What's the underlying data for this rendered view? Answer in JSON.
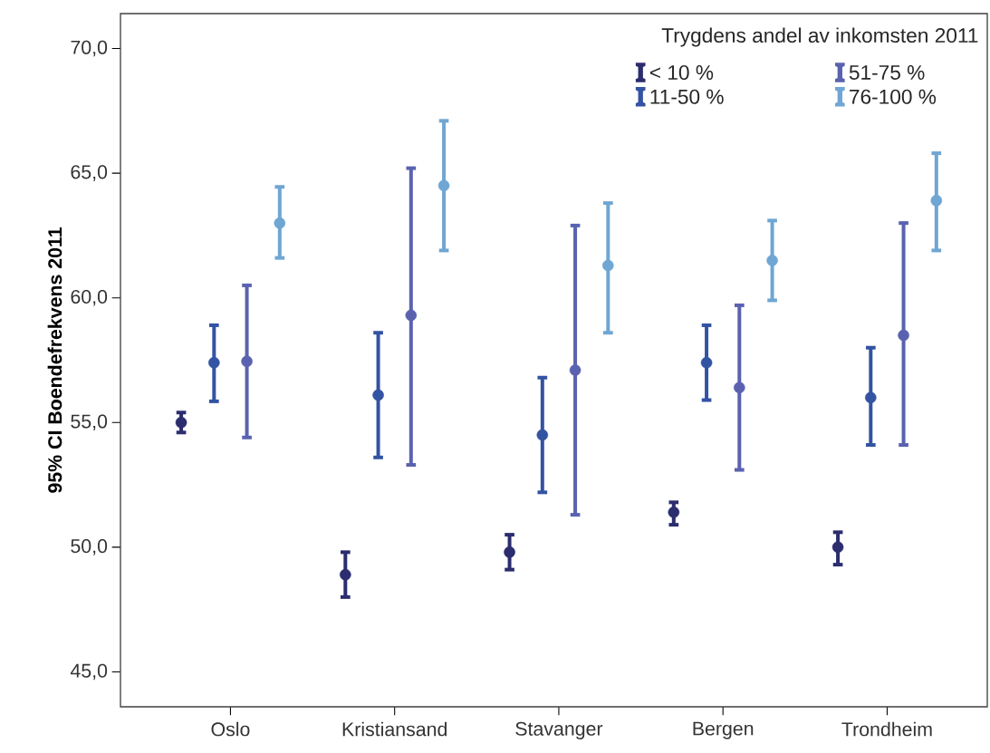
{
  "chart_data": {
    "type": "scatter",
    "ylabel": "95% CI Boendefrekvens 2011",
    "legend_title": "Trygdens andel av inkomsten 2011",
    "categories": [
      "Oslo",
      "Kristiansand",
      "Stavanger",
      "Bergen",
      "Trondheim"
    ],
    "ylim": [
      43.6,
      71.4
    ],
    "yticks": [
      {
        "value": 45,
        "label": "45,0"
      },
      {
        "value": 50,
        "label": "50,0"
      },
      {
        "value": 55,
        "label": "55,0"
      },
      {
        "value": 60,
        "label": "60,0"
      },
      {
        "value": 65,
        "label": "65,0"
      },
      {
        "value": 70,
        "label": "70,0"
      }
    ],
    "marker": "circle",
    "legend": "top right",
    "series": [
      {
        "name": "< 10 %",
        "color": "#2b2d6e",
        "values": [
          55.0,
          48.9,
          49.8,
          51.4,
          50.0
        ],
        "errors": [
          [
            54.6,
            55.4
          ],
          [
            48.0,
            49.8
          ],
          [
            49.1,
            50.5
          ],
          [
            50.9,
            51.8
          ],
          [
            49.3,
            50.6
          ]
        ]
      },
      {
        "name": "11-50 %",
        "color": "#3353a3",
        "values": [
          57.4,
          56.1,
          54.5,
          57.4,
          56.0
        ],
        "errors": [
          [
            55.85,
            58.9
          ],
          [
            53.6,
            58.6
          ],
          [
            52.2,
            56.8
          ],
          [
            55.9,
            58.9
          ],
          [
            54.1,
            58.0
          ]
        ]
      },
      {
        "name": "51-75 %",
        "color": "#5a62b0",
        "values": [
          57.45,
          59.3,
          57.1,
          56.4,
          58.5
        ],
        "errors": [
          [
            54.4,
            60.5
          ],
          [
            53.3,
            65.2
          ],
          [
            51.3,
            62.9
          ],
          [
            53.1,
            59.7
          ],
          [
            54.1,
            63.0
          ]
        ]
      },
      {
        "name": "76-100 %",
        "color": "#6fa6d3",
        "values": [
          63.0,
          64.5,
          61.3,
          61.5,
          63.9
        ],
        "errors": [
          [
            61.6,
            64.45
          ],
          [
            61.9,
            67.1
          ],
          [
            58.6,
            63.8
          ],
          [
            59.9,
            63.1
          ],
          [
            61.9,
            65.8
          ]
        ]
      }
    ]
  }
}
